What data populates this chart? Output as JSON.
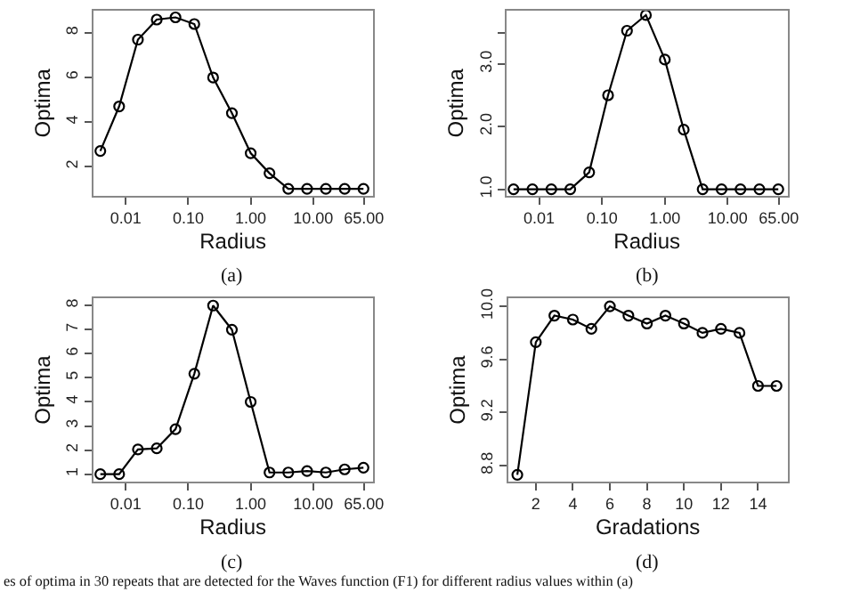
{
  "chart_data": [
    {
      "type": "line",
      "xlabel": "Radius",
      "ylabel": "Optima",
      "annotations": [
        "(a)"
      ],
      "log": "x",
      "marker": "circle",
      "line_style": "solid",
      "x": [
        0.00390625,
        0.0078125,
        0.015625,
        0.03125,
        0.0625,
        0.125,
        0.25,
        0.5,
        1,
        2,
        4,
        8,
        16,
        32,
        64
      ],
      "series": [
        {
          "color": "#000000",
          "values": [
            2.7,
            4.7,
            7.7,
            8.6,
            8.7,
            8.4,
            6.0,
            4.4,
            2.6,
            1.7,
            1.0,
            1.0,
            1.0,
            1.0,
            1.0
          ]
        }
      ],
      "xlim": [
        0.003,
        90
      ],
      "ylim": [
        0.7,
        9.0
      ],
      "xticks": [
        {
          "value": 0.01,
          "label": "0.01"
        },
        {
          "value": 0.1,
          "label": "0.10"
        },
        {
          "value": 1,
          "label": "1.00"
        },
        {
          "value": 10,
          "label": "10.00"
        },
        {
          "value": 65,
          "label": "65.00"
        }
      ],
      "yticks": [
        2,
        4,
        6,
        8
      ]
    },
    {
      "type": "line",
      "xlabel": "Radius",
      "ylabel": "Optima",
      "annotations": [
        "(b)"
      ],
      "log": "x",
      "marker": "circle",
      "line_style": "solid",
      "x": [
        0.00390625,
        0.0078125,
        0.015625,
        0.03125,
        0.0625,
        0.125,
        0.25,
        0.5,
        1,
        2,
        4,
        8,
        16,
        32,
        64
      ],
      "series": [
        {
          "color": "#000000",
          "values": [
            1.0,
            1.0,
            1.0,
            1.0,
            1.27,
            2.5,
            3.53,
            3.78,
            3.07,
            1.95,
            1.0,
            1.0,
            1.0,
            1.0,
            1.0
          ]
        }
      ],
      "xlim": [
        0.003,
        90
      ],
      "ylim": [
        0.9,
        3.85
      ],
      "xticks": [
        {
          "value": 0.01,
          "label": "0.01"
        },
        {
          "value": 0.1,
          "label": "0.10"
        },
        {
          "value": 1,
          "label": "1.00"
        },
        {
          "value": 10,
          "label": "10.00"
        },
        {
          "value": 65,
          "label": "65.00"
        }
      ],
      "yticks": [
        {
          "value": 1,
          "label": "1.0"
        },
        {
          "value": 2,
          "label": "2.0"
        },
        {
          "value": 3,
          "label": "3.0"
        },
        {
          "value": 3.5,
          "label": null
        }
      ]
    },
    {
      "type": "line",
      "xlabel": "Radius",
      "ylabel": "Optima",
      "annotations": [
        "(c)"
      ],
      "log": "x",
      "marker": "circle",
      "line_style": "solid",
      "x": [
        0.00390625,
        0.0078125,
        0.015625,
        0.03125,
        0.0625,
        0.125,
        0.25,
        0.5,
        1,
        2,
        4,
        8,
        16,
        32,
        64
      ],
      "series": [
        {
          "color": "#000000",
          "values": [
            1.0,
            1.0,
            2.03,
            2.07,
            2.87,
            5.17,
            8.0,
            7.0,
            4.0,
            1.07,
            1.07,
            1.13,
            1.07,
            1.2,
            1.27
          ]
        }
      ],
      "xlim": [
        0.003,
        90
      ],
      "ylim": [
        0.7,
        8.3
      ],
      "xticks": [
        {
          "value": 0.01,
          "label": "0.01"
        },
        {
          "value": 0.1,
          "label": "0.10"
        },
        {
          "value": 1,
          "label": "1.00"
        },
        {
          "value": 10,
          "label": "10.00"
        },
        {
          "value": 65,
          "label": "65.00"
        }
      ],
      "yticks": [
        1,
        2,
        3,
        4,
        5,
        6,
        7,
        8
      ]
    },
    {
      "type": "line",
      "xlabel": "Gradations",
      "ylabel": "Optima",
      "annotations": [
        "(d)",
        "es of optima in 30 repeats that are detected for the Waves function (F1) for different radius values within (a)"
      ],
      "marker": "circle",
      "line_style": "solid",
      "x": [
        1,
        2,
        3,
        4,
        5,
        6,
        7,
        8,
        9,
        10,
        11,
        12,
        13,
        14,
        15
      ],
      "series": [
        {
          "color": "#000000",
          "values": [
            8.73,
            9.73,
            9.93,
            9.9,
            9.83,
            10.0,
            9.93,
            9.87,
            9.93,
            9.87,
            9.8,
            9.83,
            9.8,
            9.4,
            9.4
          ]
        }
      ],
      "xlim": [
        0.5,
        15.6
      ],
      "ylim": [
        8.68,
        10.06
      ],
      "xticks": [
        2,
        4,
        6,
        8,
        10,
        12,
        14
      ],
      "yticks": [
        {
          "value": 8.8,
          "label": "8.8"
        },
        {
          "value": 9.2,
          "label": "9.2"
        },
        {
          "value": 9.6,
          "label": "9.6"
        },
        {
          "value": 10,
          "label": "10.0"
        }
      ]
    }
  ]
}
